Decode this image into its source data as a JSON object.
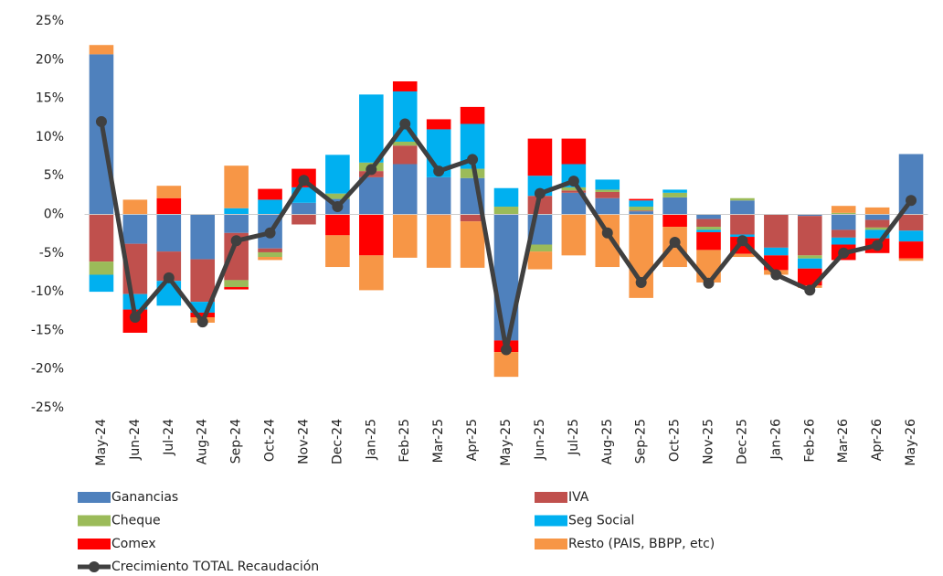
{
  "chart_data": {
    "type": "bar",
    "stacked": true,
    "categories": [
      "May-24",
      "Jun-24",
      "Jul-24",
      "Aug-24",
      "Sep-24",
      "Oct-24",
      "Nov-24",
      "Dec-24",
      "Jan-25",
      "Feb-25",
      "Mar-25",
      "Apr-25",
      "May-25",
      "Jun-25",
      "Jul-25",
      "Aug-25",
      "Sep-25",
      "Oct-25",
      "Nov-25",
      "Dec-25",
      "Jan-26",
      "Feb-26",
      "Mar-26",
      "Apr-26",
      "May-26"
    ],
    "series": [
      {
        "name": "Ganancias",
        "color": "#4f81bd",
        "values": [
          20.7,
          -3.8,
          -4.8,
          -5.8,
          -2.4,
          -4.4,
          1.5,
          2.0,
          4.8,
          6.5,
          4.8,
          4.7,
          -16.3,
          -3.9,
          2.8,
          2.1,
          0.4,
          2.2,
          -0.6,
          1.8,
          0,
          -0.2,
          -2.0,
          -0.7,
          7.8
        ]
      },
      {
        "name": "IVA",
        "color": "#c0504d",
        "values": [
          -6.1,
          -6.5,
          -3.8,
          -5.5,
          -6.1,
          -0.5,
          -1.3,
          0,
          0.8,
          2.4,
          -0.1,
          -0.9,
          0,
          2.4,
          0.3,
          0.8,
          0.1,
          0,
          -1.0,
          -2.6,
          -4.3,
          -5.1,
          -1.0,
          -1.0,
          -2.1
        ]
      },
      {
        "name": "Cheque",
        "color": "#9bbb59",
        "values": [
          -1.7,
          0,
          0,
          0,
          -0.9,
          -0.6,
          0,
          0.7,
          1.1,
          0.5,
          0,
          1.2,
          1.0,
          -0.9,
          0.4,
          0.3,
          0.5,
          0.6,
          -0.4,
          0.3,
          0,
          -0.4,
          0.2,
          -0.3,
          0
        ]
      },
      {
        "name": "Seg Social",
        "color": "#00b0f0",
        "values": [
          -2.2,
          -2.0,
          -3.2,
          -1.4,
          0.8,
          1.9,
          2.0,
          5.0,
          8.8,
          6.5,
          6.2,
          5.8,
          2.4,
          2.6,
          3.0,
          1.3,
          0.8,
          0.4,
          -0.3,
          -0.3,
          -1.0,
          -1.3,
          -0.9,
          -1.1,
          -1.4
        ]
      },
      {
        "name": "Comex",
        "color": "#ff0000",
        "values": [
          0,
          -3.0,
          2.1,
          -0.6,
          -0.3,
          1.4,
          2.4,
          -2.7,
          -5.3,
          1.3,
          1.3,
          2.2,
          -1.5,
          4.8,
          3.3,
          0,
          0.2,
          -1.6,
          -2.3,
          -2.2,
          -1.9,
          -2.2,
          -2.0,
          -1.9,
          -2.2
        ]
      },
      {
        "name": "Resto (PAIS, BBPP, etc)",
        "color": "#f79646",
        "values": [
          1.2,
          1.9,
          1.6,
          -0.7,
          5.5,
          -0.4,
          0,
          -4.1,
          -4.5,
          -5.6,
          -6.8,
          -6.0,
          -3.2,
          -2.3,
          -5.3,
          -6.8,
          -10.8,
          -5.2,
          -4.2,
          -0.4,
          -0.6,
          -0.3,
          0.9,
          0.9,
          -0.3
        ]
      }
    ],
    "line": {
      "name": "Crecimiento TOTAL Recaudación",
      "color": "#404040",
      "values": [
        12.0,
        -13.3,
        -8.2,
        -13.9,
        -3.4,
        -2.4,
        4.4,
        1.0,
        5.8,
        11.7,
        5.6,
        7.1,
        -17.5,
        2.7,
        4.3,
        -2.4,
        -8.8,
        -3.6,
        -8.9,
        -3.4,
        -7.8,
        -9.8,
        -5.0,
        -4.0,
        1.8
      ]
    },
    "ylim": [
      -25,
      25
    ],
    "yticks": [
      {
        "value": 25,
        "label": "25%"
      },
      {
        "value": 20,
        "label": "20%"
      },
      {
        "value": 15,
        "label": "15%"
      },
      {
        "value": 10,
        "label": "10%"
      },
      {
        "value": 5,
        "label": "5%"
      },
      {
        "value": 0,
        "label": "0%"
      },
      {
        "value": -5,
        "label": "-5%"
      },
      {
        "value": -10,
        "label": "-10%"
      },
      {
        "value": -15,
        "label": "-15%"
      },
      {
        "value": -20,
        "label": "-20%"
      },
      {
        "value": -25,
        "label": "-25%"
      }
    ],
    "grid": false,
    "legend": "bottom"
  }
}
